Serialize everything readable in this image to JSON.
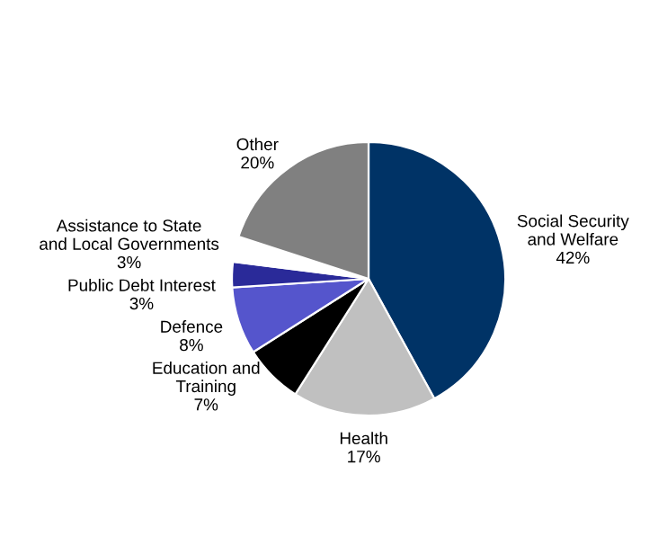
{
  "chart_data": {
    "type": "pie",
    "categories": [
      "Social Security\nand Welfare",
      "Health",
      "Education and\nTraining",
      "Defence",
      "Public Debt Interest",
      "Assistance to State\nand Local Governments",
      "Other"
    ],
    "values": [
      42,
      17,
      7,
      8,
      3,
      3,
      20
    ],
    "value_labels": [
      "42%",
      "17%",
      "7%",
      "8%",
      "3%",
      "3%",
      "20%"
    ],
    "colors": [
      "#003366",
      "#c0c0c0",
      "#000000",
      "#5555cc",
      "#2a2a99",
      "#ffffff",
      "#808080"
    ]
  }
}
